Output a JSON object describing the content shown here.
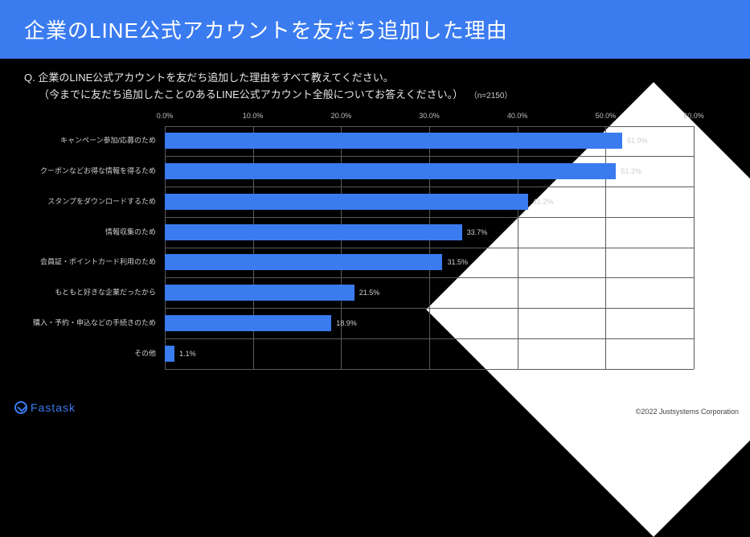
{
  "header": {
    "title": "企業のLINE公式アカウントを友だち追加した理由"
  },
  "question": {
    "prefix": "Q.",
    "line1": "企業のLINE公式アカウントを友だち追加した理由をすべて教えてください。",
    "line2": "（今までに友だち追加したことのあるLINE公式アカウント全般についてお答えください。）",
    "n_note": "（n=2150）"
  },
  "chart": {
    "type": "bar",
    "orientation": "horizontal",
    "xmin": 0,
    "xmax": 60,
    "xtick_step": 10,
    "xtick_labels": [
      "0.0%",
      "10.0%",
      "20.0%",
      "30.0%",
      "40.0%",
      "50.0%",
      "60.0%"
    ],
    "bar_color": "#3a7bf0",
    "grid_color": "#5a5a5a",
    "background_color": "#000000",
    "label_color": "#cfcfcf",
    "label_fontsize": 9,
    "value_fontsize": 9,
    "categories": [
      "キャンペーン参加/応募のため",
      "クーポンなどお得な情報を得るため",
      "スタンプをダウンロードするため",
      "情報収集のため",
      "会員証・ポイントカード利用のため",
      "もともと好きな企業だったから",
      "購入・予約・申込などの手続きのため",
      "その他"
    ],
    "values": [
      51.9,
      51.2,
      41.2,
      33.7,
      31.5,
      21.5,
      18.9,
      1.1
    ],
    "value_labels": [
      "51.9%",
      "51.2%",
      "41.2%",
      "33.7%",
      "31.5%",
      "21.5%",
      "18.9%",
      "1.1%"
    ]
  },
  "footer": {
    "brand": "Fastask",
    "copyright": "©2022 Justsystems Corporation"
  },
  "colors": {
    "header_bg": "#3a7bf0",
    "page_bg": "#000000",
    "text_light": "#e6e6e6",
    "accent": "#3a7bf0",
    "triangle": "#ffffff"
  }
}
